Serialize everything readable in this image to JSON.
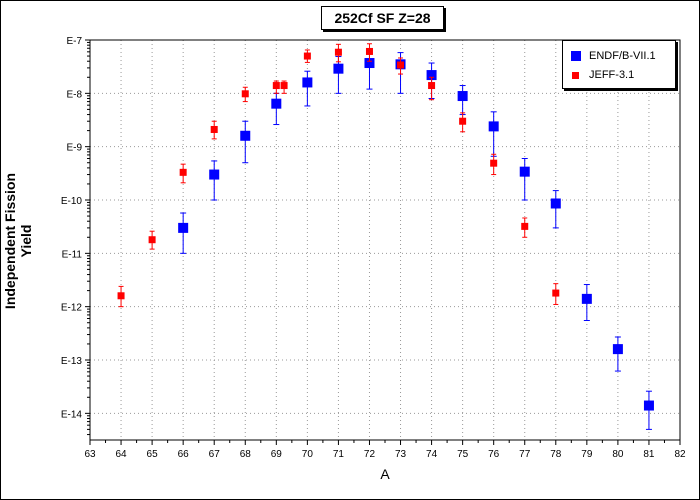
{
  "chart_data": {
    "type": "scatter",
    "title": "252Cf SF Z=28",
    "xlabel": "A",
    "ylabel": "Independent Fission Yield",
    "xlim": [
      63,
      82
    ],
    "ylim_exponents": [
      -14.5,
      -7
    ],
    "yscale": "log",
    "xticks": [
      "63",
      "64",
      "65",
      "66",
      "67",
      "68",
      "69",
      "70",
      "71",
      "72",
      "73",
      "74",
      "75",
      "76",
      "77",
      "78",
      "79",
      "80",
      "81",
      "82"
    ],
    "yticks": [
      {
        "exp": -7,
        "label": "E-7"
      },
      {
        "exp": -8,
        "label": "E-8"
      },
      {
        "exp": -9,
        "label": "E-9"
      },
      {
        "exp": -10,
        "label": "E-10"
      },
      {
        "exp": -11,
        "label": "E-11"
      },
      {
        "exp": -12,
        "label": "E-12"
      },
      {
        "exp": -13,
        "label": "E-13"
      },
      {
        "exp": -14,
        "label": "E-14"
      }
    ],
    "grid": true,
    "legend_position": "top-right",
    "series": [
      {
        "name": "ENDF/B-VII.1",
        "color": "#0000ff",
        "marker": "square-large",
        "points": [
          {
            "x": 66,
            "y": "3.0e-11",
            "lo": "1.0e-11",
            "hi": "5.7e-11"
          },
          {
            "x": 67,
            "y": "3.0e-10",
            "lo": "1.0e-10",
            "hi": "5.4e-10"
          },
          {
            "x": 68,
            "y": "1.6e-9",
            "lo": "5.0e-10",
            "hi": "3.0e-9"
          },
          {
            "x": 69,
            "y": "6.4e-9",
            "lo": "2.6e-9",
            "hi": "1.0e-8"
          },
          {
            "x": 70,
            "y": "1.6e-8",
            "lo": "5.8e-9",
            "hi": "2.6e-8"
          },
          {
            "x": 71,
            "y": "2.9e-8",
            "lo": "1.0e-8",
            "hi": "4.9e-8"
          },
          {
            "x": 72,
            "y": "3.7e-8",
            "lo": "1.2e-8",
            "hi": "6.6e-8"
          },
          {
            "x": 73,
            "y": "3.5e-8",
            "lo": "1.0e-8",
            "hi": "5.8e-8"
          },
          {
            "x": 74,
            "y": "2.2e-8",
            "lo": "8.0e-9",
            "hi": "3.7e-8"
          },
          {
            "x": 75,
            "y": "8.9e-9",
            "lo": "4.0e-9",
            "hi": "1.4e-8"
          },
          {
            "x": 76,
            "y": "2.4e-9",
            "lo": "6.6e-10",
            "hi": "4.5e-9"
          },
          {
            "x": 77,
            "y": "3.4e-10",
            "lo": "1.0e-10",
            "hi": "6.0e-10"
          },
          {
            "x": 78,
            "y": "8.6e-11",
            "lo": "3.0e-11",
            "hi": "1.5e-10"
          },
          {
            "x": 79,
            "y": "1.4e-12",
            "lo": "5.5e-13",
            "hi": "2.6e-12"
          },
          {
            "x": 80,
            "y": "1.6e-13",
            "lo": "6.2e-14",
            "hi": "2.7e-13"
          },
          {
            "x": 81,
            "y": "1.4e-14",
            "lo": "5.0e-15",
            "hi": "2.6e-14"
          }
        ]
      },
      {
        "name": "JEFF-3.1",
        "color": "#ff0000",
        "marker": "square-small",
        "points": [
          {
            "x": 64,
            "y": "1.6e-12",
            "lo": "1.0e-12",
            "hi": "2.4e-12"
          },
          {
            "x": 65,
            "y": "1.8e-11",
            "lo": "1.2e-11",
            "hi": "2.6e-11"
          },
          {
            "x": 66,
            "y": "3.3e-10",
            "lo": "2.1e-10",
            "hi": "4.7e-10"
          },
          {
            "x": 67,
            "y": "2.1e-9",
            "lo": "1.4e-9",
            "hi": "3.0e-9"
          },
          {
            "x": 68,
            "y": "9.8e-9",
            "lo": "7.0e-9",
            "hi": "1.3e-8"
          },
          {
            "x": 69,
            "y": "1.4e-8",
            "lo": "1.0e-8",
            "hi": "1.7e-8"
          },
          {
            "x": 69.25,
            "y": "1.4e-8",
            "lo": "1.0e-8",
            "hi": "1.7e-8"
          },
          {
            "x": 70,
            "y": "5.0e-8",
            "lo": "3.8e-8",
            "hi": "6.5e-8"
          },
          {
            "x": 71,
            "y": "5.9e-8",
            "lo": "3.9e-8",
            "hi": "8.3e-8"
          },
          {
            "x": 72,
            "y": "6.1e-8",
            "lo": "4.0e-8",
            "hi": "8.5e-8"
          },
          {
            "x": 73,
            "y": "3.4e-8",
            "lo": "2.3e-8",
            "hi": "4.6e-8"
          },
          {
            "x": 74,
            "y": "1.4e-8",
            "lo": "7.6e-9",
            "hi": "2.0e-8"
          },
          {
            "x": 75,
            "y": "3.0e-9",
            "lo": "1.9e-9",
            "hi": "4.3e-9"
          },
          {
            "x": 76,
            "y": "4.9e-10",
            "lo": "3.0e-10",
            "hi": "7.2e-10"
          },
          {
            "x": 77,
            "y": "3.2e-11",
            "lo": "2.0e-11",
            "hi": "4.6e-11"
          },
          {
            "x": 78,
            "y": "1.8e-12",
            "lo": "1.1e-12",
            "hi": "2.7e-12"
          }
        ]
      }
    ]
  }
}
